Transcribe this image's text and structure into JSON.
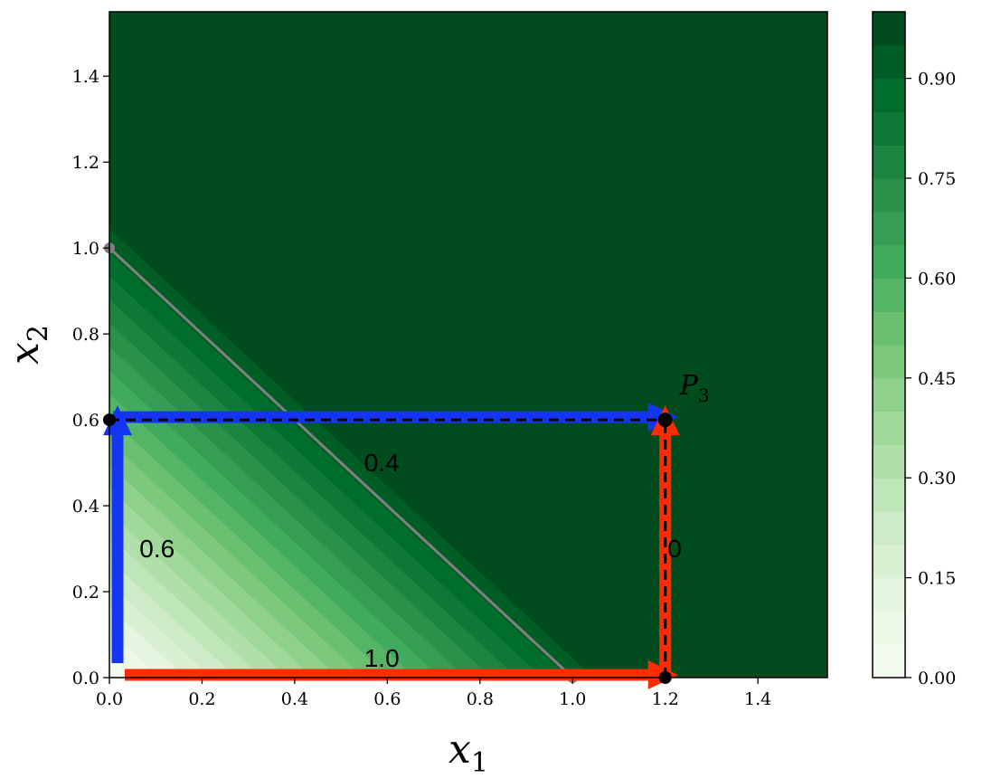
{
  "chart_data": {
    "type": "heatmap",
    "title": "",
    "xlabel": "x",
    "xlabel_sub": "1",
    "ylabel": "x",
    "ylabel_sub": "2",
    "xlim": [
      0,
      1.55
    ],
    "ylim": [
      0,
      1.55
    ],
    "x_ticks": [
      0.0,
      0.2,
      0.4,
      0.6,
      0.8,
      1.0,
      1.2,
      1.4
    ],
    "x_tick_labels": [
      "0.0",
      "0.2",
      "0.4",
      "0.6",
      "0.8",
      "1.0",
      "1.2",
      "1.4"
    ],
    "y_ticks": [
      0.0,
      0.2,
      0.4,
      0.6,
      0.8,
      1.0,
      1.2,
      1.4
    ],
    "y_tick_labels": [
      "0.0",
      "0.2",
      "0.4",
      "0.6",
      "0.8",
      "1.0",
      "1.2",
      "1.4"
    ],
    "colorbar": {
      "min": 0.0,
      "max": 1.0,
      "levels": 20,
      "ticks": [
        0.0,
        0.15,
        0.3,
        0.45,
        0.6,
        0.75,
        0.9
      ],
      "tick_labels": [
        "0.00",
        "0.15",
        "0.30",
        "0.45",
        "0.60",
        "0.75",
        "0.90"
      ],
      "colormap": "Greens"
    },
    "contour_function": "saturates to 1 as x1 + x2 grows; level 1 beyond about x1 + x2 = 1.1",
    "boundary_line": {
      "x": [
        0.0,
        1.0
      ],
      "y": [
        1.0,
        0.0
      ],
      "color": "#808080"
    },
    "point": {
      "label": "P",
      "label_sub": "3",
      "x": 1.2,
      "y": 0.6
    },
    "arrows": [
      {
        "name": "blue-vertical",
        "color": "#1535f5",
        "from": [
          0.0,
          0.0
        ],
        "to": [
          0.0,
          0.6
        ]
      },
      {
        "name": "blue-horizontal",
        "color": "#1535f5",
        "from": [
          0.0,
          0.6
        ],
        "to": [
          1.2,
          0.6
        ]
      },
      {
        "name": "red-horizontal",
        "color": "#ff2a00",
        "from": [
          0.0,
          0.0
        ],
        "to": [
          1.2,
          0.0
        ]
      },
      {
        "name": "red-vertical",
        "color": "#ff2a00",
        "from": [
          1.2,
          0.0
        ],
        "to": [
          1.2,
          0.6
        ]
      }
    ],
    "dashed_lines": [
      {
        "from": [
          0.0,
          0.6
        ],
        "to": [
          1.2,
          0.6
        ]
      },
      {
        "from": [
          1.2,
          0.0
        ],
        "to": [
          1.2,
          0.6
        ]
      }
    ],
    "annotations": [
      {
        "text": "0.4",
        "x": 0.55,
        "y": 0.48
      },
      {
        "text": "0.6",
        "x": 0.065,
        "y": 0.28
      },
      {
        "text": "1.0",
        "x": 0.55,
        "y": 0.025
      },
      {
        "text": "0",
        "x": 1.205,
        "y": 0.28
      }
    ]
  }
}
